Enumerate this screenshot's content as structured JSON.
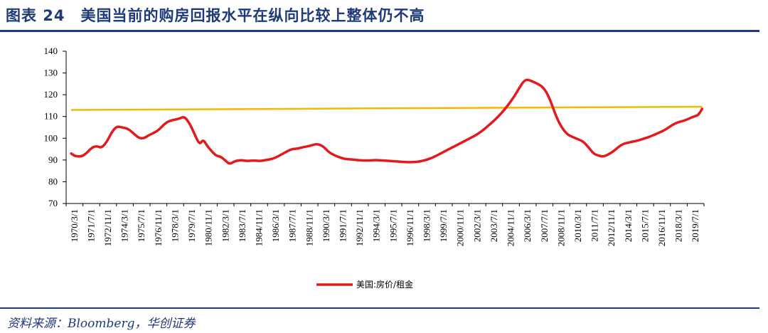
{
  "figure": {
    "title": "图表 24　美国当前的购房回报水平在纵向比较上整体仍不高",
    "source": "资料来源：Bloomberg，华创证券"
  },
  "colors": {
    "series": "#e3191c",
    "trend": "#f5b800",
    "rule": "#1f3a78",
    "axis": "#000000"
  },
  "chart_data": {
    "type": "line",
    "title": "",
    "xlabel": "",
    "ylabel": "",
    "ylim": [
      70,
      140
    ],
    "yticks": [
      70,
      80,
      90,
      100,
      110,
      120,
      130,
      140
    ],
    "grid": false,
    "legend_position": "bottom-center",
    "x_tick_labels": [
      "1970/3/1",
      "1971/7/1",
      "1972/11/1",
      "1974/3/1",
      "1975/7/1",
      "1976/11/1",
      "1978/3/1",
      "1979/7/1",
      "1980/11/1",
      "1982/3/1",
      "1983/7/1",
      "1984/11/1",
      "1986/3/1",
      "1987/7/1",
      "1988/11/1",
      "1990/3/1",
      "1991/7/1",
      "1992/11/1",
      "1994/3/1",
      "1995/7/1",
      "1996/11/1",
      "1998/3/1",
      "1999/7/1",
      "2000/11/1",
      "2002/3/1",
      "2003/7/1",
      "2004/11/1",
      "2006/3/1",
      "2007/7/1",
      "2008/11/1",
      "2010/3/1",
      "2011/7/1",
      "2012/11/1",
      "2014/3/1",
      "2015/7/1",
      "2016/11/1",
      "2018/3/1",
      "2019/7/1"
    ],
    "series": [
      {
        "name": "美国:房价/租金",
        "x": [
          1970.0,
          1970.3,
          1970.8,
          1971.2,
          1971.6,
          1972.0,
          1972.4,
          1972.8,
          1973.2,
          1973.6,
          1974.0,
          1974.5,
          1975.0,
          1975.4,
          1975.8,
          1976.2,
          1976.6,
          1977.0,
          1977.4,
          1977.8,
          1978.2,
          1978.6,
          1979.0,
          1979.4,
          1979.8,
          1980.2,
          1980.5,
          1980.8,
          1981.1,
          1981.5,
          1981.9,
          1982.2,
          1982.6,
          1983.0,
          1983.5,
          1984.0,
          1984.5,
          1985.0,
          1985.5,
          1986.0,
          1986.5,
          1987.0,
          1987.5,
          1988.0,
          1988.5,
          1989.0,
          1989.5,
          1990.0,
          1990.4,
          1990.8,
          1991.2,
          1991.7,
          1992.2,
          1992.7,
          1993.2,
          1993.7,
          1994.2,
          1994.7,
          1995.2,
          1995.7,
          1996.2,
          1996.7,
          1997.2,
          1997.7,
          1998.2,
          1998.7,
          1999.2,
          1999.7,
          2000.2,
          2000.7,
          2001.2,
          2001.7,
          2002.2,
          2002.7,
          2003.2,
          2003.7,
          2004.2,
          2004.7,
          2005.2,
          2005.6,
          2006.0,
          2006.3,
          2006.7,
          2007.1,
          2007.5,
          2007.9,
          2008.3,
          2008.7,
          2009.1,
          2009.5,
          2009.9,
          2010.3,
          2010.7,
          2011.1,
          2011.5,
          2011.9,
          2012.3,
          2012.7,
          2013.1,
          2013.5,
          2013.9,
          2014.3,
          2014.7,
          2015.1,
          2015.5,
          2015.9,
          2016.3,
          2016.7,
          2017.1,
          2017.5,
          2017.9,
          2018.3,
          2018.7,
          2019.1,
          2019.5,
          2019.8,
          2020.0,
          2020.15
        ],
        "values": [
          93.0,
          91.8,
          91.5,
          93.0,
          95.5,
          96.5,
          95.5,
          98.0,
          102.5,
          105.5,
          105.0,
          104.5,
          102.0,
          100.0,
          100.0,
          101.5,
          102.5,
          104.0,
          106.5,
          108.0,
          108.5,
          109.0,
          110.0,
          107.0,
          102.0,
          97.0,
          99.5,
          96.5,
          94.5,
          92.0,
          91.5,
          90.0,
          88.0,
          89.5,
          90.0,
          89.5,
          89.8,
          89.5,
          90.0,
          90.5,
          91.8,
          93.5,
          95.0,
          95.2,
          96.0,
          96.5,
          97.5,
          96.5,
          94.0,
          92.5,
          91.5,
          90.5,
          90.3,
          90.0,
          89.8,
          89.8,
          90.0,
          89.8,
          89.6,
          89.4,
          89.2,
          89.0,
          89.0,
          89.3,
          90.0,
          91.0,
          92.5,
          94.0,
          95.5,
          97.0,
          98.5,
          100.0,
          101.5,
          103.5,
          106.0,
          108.5,
          111.5,
          115.0,
          119.0,
          123.0,
          126.5,
          127.0,
          126.0,
          125.0,
          123.5,
          120.0,
          114.0,
          108.0,
          104.0,
          101.5,
          100.5,
          99.5,
          98.5,
          96.0,
          93.0,
          92.0,
          91.5,
          92.5,
          94.0,
          96.0,
          97.5,
          98.0,
          98.5,
          99.0,
          99.8,
          100.5,
          101.5,
          102.5,
          103.5,
          105.0,
          106.5,
          107.5,
          108.0,
          109.0,
          110.0,
          110.5,
          112.0,
          113.5
        ]
      }
    ],
    "trend_line": {
      "x": [
        1970.0,
        2020.15
      ],
      "values": [
        113.0,
        114.5
      ]
    },
    "x_range": [
      1969.6,
      2020.3
    ]
  }
}
